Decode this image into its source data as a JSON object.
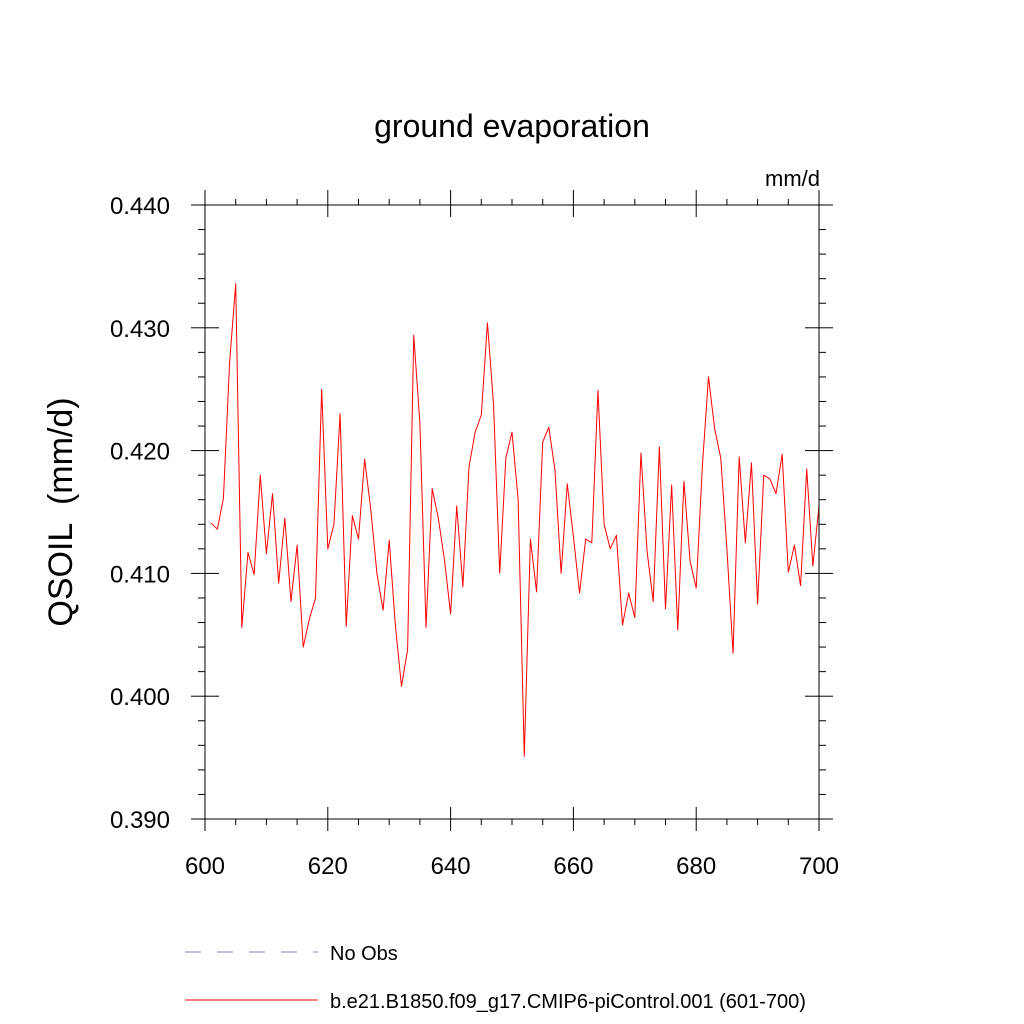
{
  "chart_data": {
    "type": "line",
    "title": "ground evaporation",
    "units": "mm/d",
    "ylabel": "QSOIL  (mm/d)",
    "xlabel": "",
    "xlim": [
      600,
      700
    ],
    "ylim": [
      0.39,
      0.44
    ],
    "x_ticks": [
      {
        "value": 600,
        "label": "600"
      },
      {
        "value": 620,
        "label": "620"
      },
      {
        "value": 640,
        "label": "640"
      },
      {
        "value": 660,
        "label": "660"
      },
      {
        "value": 680,
        "label": "680"
      },
      {
        "value": 700,
        "label": "700"
      }
    ],
    "y_ticks": [
      {
        "value": 0.39,
        "label": "0.390"
      },
      {
        "value": 0.4,
        "label": "0.400"
      },
      {
        "value": 0.41,
        "label": "0.410"
      },
      {
        "value": 0.42,
        "label": "0.420"
      },
      {
        "value": 0.43,
        "label": "0.430"
      },
      {
        "value": 0.44,
        "label": "0.440"
      }
    ],
    "grid": false,
    "legend_position": "bottom-left",
    "legend": [
      {
        "label": "No Obs",
        "color": "#8080c0",
        "style": "dashed"
      },
      {
        "label": "b.e21.B1850.f09_g17.CMIP6-piControl.001 (601-700)",
        "color": "#ff0000",
        "style": "solid"
      }
    ],
    "series": [
      {
        "color": "#ff0000",
        "x": [
          601,
          602,
          603,
          604,
          605,
          606,
          607,
          608,
          609,
          610,
          611,
          612,
          613,
          614,
          615,
          616,
          617,
          618,
          619,
          620,
          621,
          622,
          623,
          624,
          625,
          626,
          627,
          628,
          629,
          630,
          631,
          632,
          633,
          634,
          635,
          636,
          637,
          638,
          639,
          640,
          641,
          642,
          643,
          644,
          645,
          646,
          647,
          648,
          649,
          650,
          651,
          652,
          653,
          654,
          655,
          656,
          657,
          658,
          659,
          660,
          661,
          662,
          663,
          664,
          665,
          666,
          667,
          668,
          669,
          670,
          671,
          672,
          673,
          674,
          675,
          676,
          677,
          678,
          679,
          680,
          681,
          682,
          683,
          684,
          685,
          686,
          687,
          688,
          689,
          690,
          691,
          692,
          693,
          694,
          695,
          696,
          697,
          698,
          699,
          700
        ],
        "values": [
          0.4141,
          0.4136,
          0.4161,
          0.4271,
          0.4336,
          0.4056,
          0.4117,
          0.4099,
          0.418,
          0.4116,
          0.4165,
          0.4092,
          0.4145,
          0.4077,
          0.4123,
          0.404,
          0.4063,
          0.408,
          0.425,
          0.412,
          0.414,
          0.423,
          0.4057,
          0.4147,
          0.4128,
          0.4193,
          0.4152,
          0.41,
          0.407,
          0.4127,
          0.4058,
          0.4008,
          0.4038,
          0.4294,
          0.4222,
          0.4056,
          0.4169,
          0.4145,
          0.4111,
          0.4067,
          0.4155,
          0.4089,
          0.4187,
          0.4215,
          0.4229,
          0.4304,
          0.4237,
          0.41,
          0.4194,
          0.4215,
          0.416,
          0.3951,
          0.4128,
          0.4085,
          0.4207,
          0.4219,
          0.4184,
          0.41,
          0.4173,
          0.413,
          0.4084,
          0.4128,
          0.4125,
          0.4249,
          0.414,
          0.412,
          0.4131,
          0.4058,
          0.4084,
          0.4064,
          0.4198,
          0.4118,
          0.4077,
          0.4203,
          0.4071,
          0.4172,
          0.4054,
          0.4175,
          0.411,
          0.4088,
          0.4187,
          0.426,
          0.4218,
          0.4194,
          0.412,
          0.4035,
          0.4195,
          0.4125,
          0.419,
          0.4075,
          0.418,
          0.4177,
          0.4165,
          0.4197,
          0.4101,
          0.4123,
          0.409,
          0.4185,
          0.4106,
          0.4155
        ]
      }
    ]
  }
}
